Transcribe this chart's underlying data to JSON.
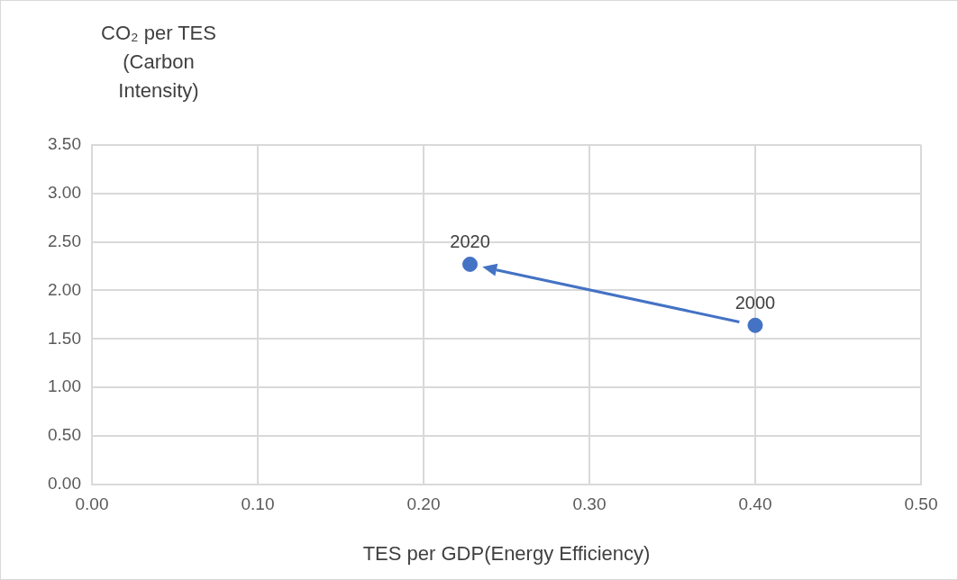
{
  "chart_data": {
    "type": "scatter",
    "xlabel": "TES per GDP(Energy Efficiency)",
    "ylabel": "CO₂ per TES (Carbon Intensity)",
    "x": [
      0.4,
      0.228
    ],
    "values": [
      1.64,
      2.27
    ],
    "color": "#4472c4",
    "marker": "circle",
    "xlim": [
      0,
      0.5
    ],
    "xticks": [
      {
        "value": 0,
        "label": "0.00"
      },
      {
        "value": 0.1,
        "label": "0.10"
      },
      {
        "value": 0.2,
        "label": "0.20"
      },
      {
        "value": 0.3,
        "label": "0.30"
      },
      {
        "value": 0.4,
        "label": "0.40"
      },
      {
        "value": 0.5,
        "label": "0.50"
      }
    ],
    "ylim": [
      0,
      3.5
    ],
    "yticks": [
      {
        "value": 0,
        "label": "0.00"
      },
      {
        "value": 0.5,
        "label": "0.50"
      },
      {
        "value": 1,
        "label": "1.00"
      },
      {
        "value": 1.5,
        "label": "1.50"
      },
      {
        "value": 2,
        "label": "2.00"
      },
      {
        "value": 2.5,
        "label": "2.50"
      },
      {
        "value": 3,
        "label": "3.00"
      },
      {
        "value": 3.5,
        "label": "3.50"
      }
    ],
    "grid": true,
    "annotations": [
      {
        "text": "2000",
        "x": 0.4,
        "y": 1.64
      },
      {
        "text": "2020",
        "x": 0.228,
        "y": 2.27
      }
    ]
  }
}
